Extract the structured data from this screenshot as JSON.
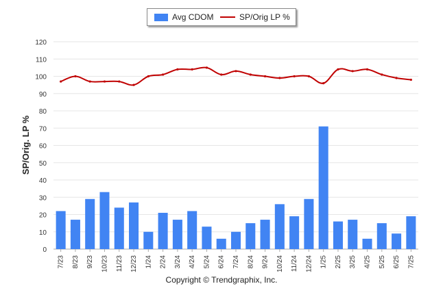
{
  "chart_data": {
    "type": "bar",
    "categories": [
      "7/23",
      "8/23",
      "9/23",
      "10/23",
      "11/23",
      "12/23",
      "1/24",
      "2/24",
      "3/24",
      "4/24",
      "5/24",
      "6/24",
      "7/24",
      "8/24",
      "9/24",
      "10/24",
      "11/24",
      "12/24",
      "1/25",
      "2/25",
      "3/25",
      "4/25",
      "5/25",
      "6/25",
      "7/25"
    ],
    "series": [
      {
        "name": "Avg CDOM",
        "type": "bar",
        "color": "#4184f3",
        "values": [
          22,
          17,
          29,
          33,
          24,
          27,
          10,
          21,
          17,
          22,
          13,
          6,
          10,
          15,
          17,
          26,
          19,
          29,
          71,
          16,
          17,
          6,
          15,
          9,
          19
        ]
      },
      {
        "name": "SP/Orig LP %",
        "type": "line",
        "color": "#c00000",
        "values": [
          97,
          100,
          97,
          97,
          97,
          95,
          100,
          101,
          104,
          104,
          105,
          101,
          103,
          101,
          100,
          99,
          100,
          100,
          96,
          104,
          103,
          104,
          101,
          99,
          98
        ]
      }
    ],
    "ylabel": "SP/Orig. LP %",
    "xlabel": "",
    "ylim": [
      0,
      120
    ],
    "yticks": [
      0,
      10,
      20,
      30,
      40,
      50,
      60,
      70,
      80,
      90,
      100,
      110,
      120
    ],
    "grid": true,
    "legend_position": "top-center"
  },
  "footer": {
    "copyright": "Copyright © Trendgraphix, Inc."
  }
}
